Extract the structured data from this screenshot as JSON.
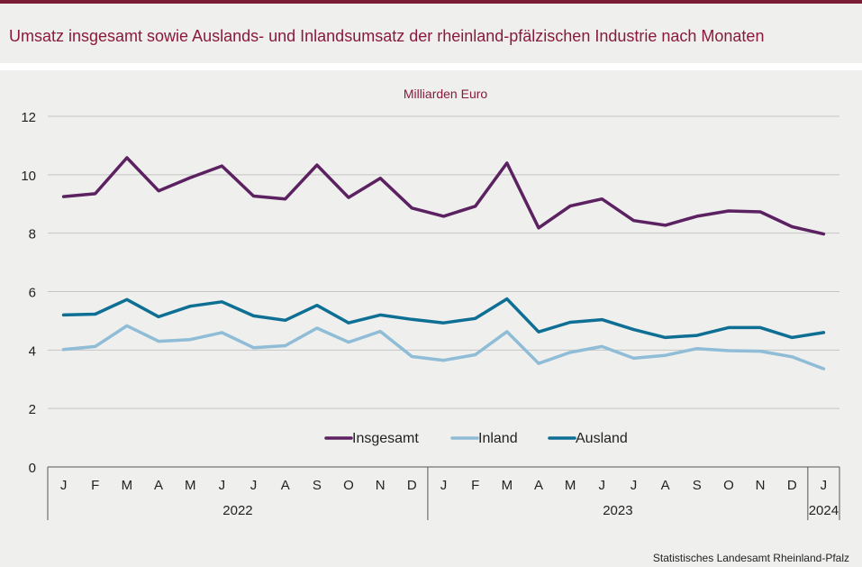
{
  "header": {
    "title": "Umsatz insgesamt sowie Auslands- und Inlandsumsatz der rheinland-pfälzischen Industrie nach Monaten"
  },
  "footer": {
    "source": "Statistisches Landesamt  Rheinland-Pfalz"
  },
  "colors": {
    "accent": "#7a1c34",
    "title": "#8a1a3c",
    "insgesamt": "#5b2160",
    "inland": "#8fbcd6",
    "ausland": "#0e6f95",
    "gridline": "#c4c4c4",
    "background": "#efefed"
  },
  "chart_data": {
    "type": "line",
    "unit_label": "Milliarden Euro",
    "categories": [
      "J",
      "F",
      "M",
      "A",
      "M",
      "J",
      "J",
      "A",
      "S",
      "O",
      "N",
      "D",
      "J",
      "F",
      "M",
      "A",
      "M",
      "J",
      "J",
      "A",
      "S",
      "O",
      "N",
      "D",
      "J"
    ],
    "year_groups": [
      {
        "label": "2022",
        "count": 12
      },
      {
        "label": "2023",
        "count": 12
      },
      {
        "label": "2024",
        "count": 1
      }
    ],
    "yticks": [
      "0",
      "2",
      "4",
      "6",
      "8",
      "10",
      "12"
    ],
    "ylim": [
      0,
      12
    ],
    "grid": true,
    "legend_position": "bottom-center",
    "series": [
      {
        "name": "Insgesamt",
        "color": "#5b2160",
        "values": [
          9.25,
          9.35,
          10.58,
          9.45,
          9.9,
          10.3,
          9.27,
          9.17,
          10.33,
          9.22,
          9.88,
          8.86,
          8.58,
          8.92,
          10.4,
          8.18,
          8.93,
          9.17,
          8.43,
          8.27,
          8.58,
          8.76,
          8.73,
          8.22,
          7.97
        ]
      },
      {
        "name": "Inland",
        "color": "#8fbcd6",
        "values": [
          4.02,
          4.12,
          4.83,
          4.3,
          4.36,
          4.6,
          4.08,
          4.15,
          4.75,
          4.27,
          4.64,
          3.78,
          3.65,
          3.84,
          4.63,
          3.54,
          3.92,
          4.12,
          3.72,
          3.82,
          4.05,
          3.98,
          3.96,
          3.77,
          3.36
        ]
      },
      {
        "name": "Ausland",
        "color": "#0e6f95",
        "values": [
          5.2,
          5.23,
          5.73,
          5.14,
          5.5,
          5.65,
          5.17,
          5.02,
          5.53,
          4.93,
          5.2,
          5.05,
          4.93,
          5.08,
          5.75,
          4.62,
          4.95,
          5.04,
          4.7,
          4.43,
          4.5,
          4.77,
          4.77,
          4.43,
          4.6
        ]
      }
    ]
  }
}
